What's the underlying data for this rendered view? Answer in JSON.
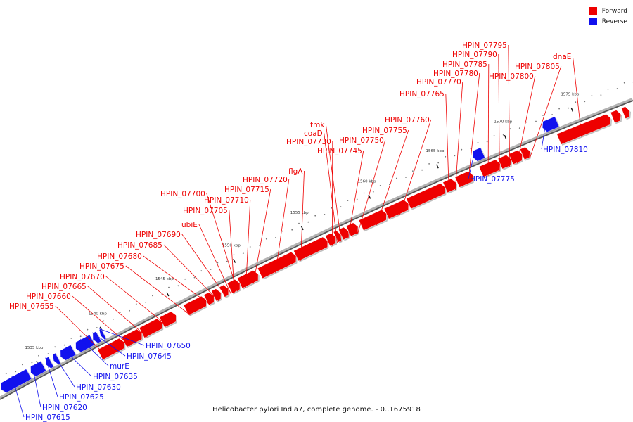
{
  "legend": {
    "forward": {
      "label": "Forward",
      "color": "#ee0000"
    },
    "reverse": {
      "label": "Reverse",
      "color": "#1111ee"
    }
  },
  "caption": "Helicobacter pylori India7, complete genome. - 0..1675918",
  "ticks": [
    "1535 kbp",
    "1540 kbp",
    "1545 kbp",
    "1550 kbp",
    "1555 kbp",
    "1560 kbp",
    "1565 kbp",
    "1570 kbp",
    "1575 kbp"
  ],
  "forward_genes": [
    "HPIN_07655",
    "HPIN_07660",
    "HPIN_07665",
    "HPIN_07670",
    "HPIN_07675",
    "HPIN_07680",
    "HPIN_07685",
    "HPIN_07690",
    "ubiE",
    "HPIN_07705",
    "HPIN_07700",
    "HPIN_07710",
    "HPIN_07715",
    "HPIN_07720",
    "flgA",
    "HPIN_07730",
    "coaD",
    "tmk",
    "HPIN_07745",
    "HPIN_07750",
    "HPIN_07755",
    "HPIN_07760",
    "HPIN_07765",
    "HPIN_07770",
    "HPIN_07780",
    "HPIN_07785",
    "HPIN_07790",
    "HPIN_07795",
    "HPIN_07800",
    "HPIN_07805",
    "dnaE"
  ],
  "reverse_genes": [
    "HPIN_07615",
    "HPIN_07620",
    "HPIN_07625",
    "HPIN_07630",
    "HPIN_07635",
    "murE",
    "HPIN_07645",
    "HPIN_07650",
    "HPIN_07775",
    "HPIN_07810"
  ]
}
